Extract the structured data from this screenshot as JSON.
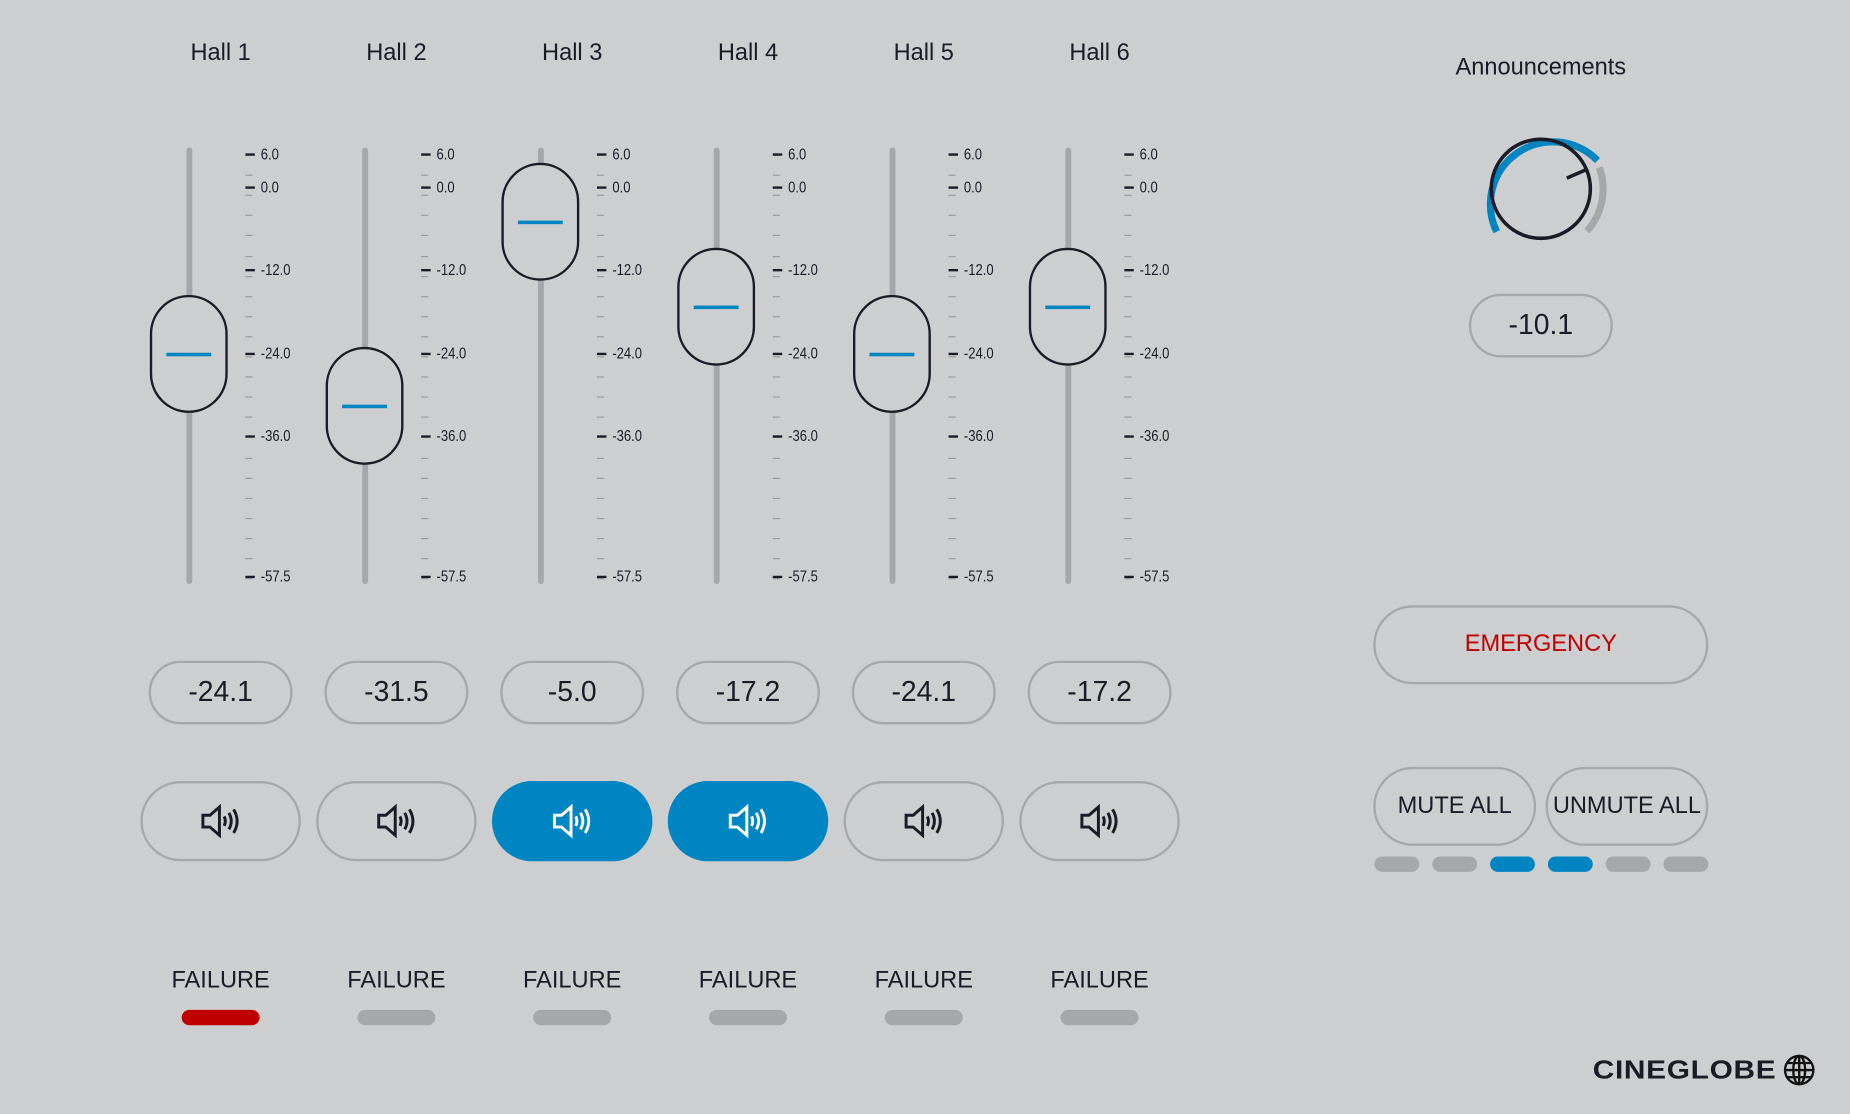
{
  "scale_labels": [
    {
      "label": "6.0",
      "db": 6
    },
    {
      "label": "0.0",
      "db": 0
    },
    {
      "label": "-12.0",
      "db": -12
    },
    {
      "label": "-24.0",
      "db": -24
    },
    {
      "label": "-36.0",
      "db": -36
    },
    {
      "label": "-57.5",
      "db": -57.5
    }
  ],
  "halls": [
    {
      "title": "Hall 1",
      "value": "-24.1",
      "level": -24.1,
      "muted_active": false,
      "failure_label": "FAILURE",
      "failure": true
    },
    {
      "title": "Hall 2",
      "value": "-31.5",
      "level": -31.5,
      "muted_active": false,
      "failure_label": "FAILURE",
      "failure": false
    },
    {
      "title": "Hall 3",
      "value": "-5.0",
      "level": -5.0,
      "muted_active": true,
      "failure_label": "FAILURE",
      "failure": false
    },
    {
      "title": "Hall 4",
      "value": "-17.2",
      "level": -17.2,
      "muted_active": true,
      "failure_label": "FAILURE",
      "failure": false
    },
    {
      "title": "Hall 5",
      "value": "-24.1",
      "level": -24.1,
      "muted_active": false,
      "failure_label": "FAILURE",
      "failure": false
    },
    {
      "title": "Hall 6",
      "value": "-17.2",
      "level": -17.2,
      "muted_active": false,
      "failure_label": "FAILURE",
      "failure": false
    }
  ],
  "announcements": {
    "title": "Announcements",
    "value": "-10.1"
  },
  "emergency_label": "EMERGENCY",
  "mute_all_label": "MUTE ALL",
  "unmute_all_label": "UNMUTE ALL",
  "hall_indicators": [
    false,
    false,
    true,
    true,
    false,
    false
  ],
  "brand": "CINEGLOBE",
  "colors": {
    "accent": "#0085c3",
    "alert": "#c00000",
    "background": "#cdcecf",
    "inactive": "#a6a7ab"
  }
}
